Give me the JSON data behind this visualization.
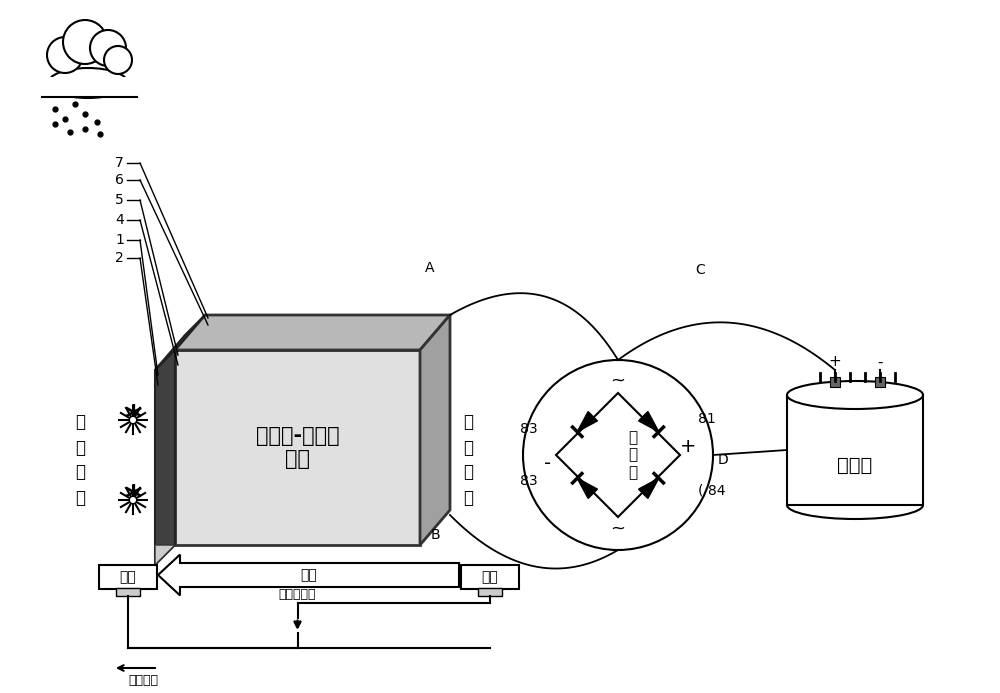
{
  "bg_color": "#ffffff",
  "wall_text": "石墨烯-混凝土\n墙体",
  "low_temp_label": "低\n温\n区\n域",
  "high_temp_label": "高\n温\n区\n域",
  "cold_label": "冷端",
  "hot_label": "热端",
  "fluid_label": "流体",
  "temp_gen_label": "温差发电器",
  "current_dir_label": "电流方向",
  "rectifier_label": "整\n流\n器",
  "capacitor_label": "电容器",
  "num_labels": [
    "7",
    "6",
    "5",
    "4",
    "1",
    "2"
  ],
  "point_labels": [
    "A",
    "B",
    "C",
    "D"
  ],
  "diode_labels": [
    "83",
    "81",
    "83",
    "84"
  ],
  "wall_color": "#e0e0e0",
  "wall_top_color": "#b8b8b8",
  "wall_right_color": "#a0a0a0",
  "wall_strip_color": "#404040",
  "wall_strip_top_color": "#606060"
}
